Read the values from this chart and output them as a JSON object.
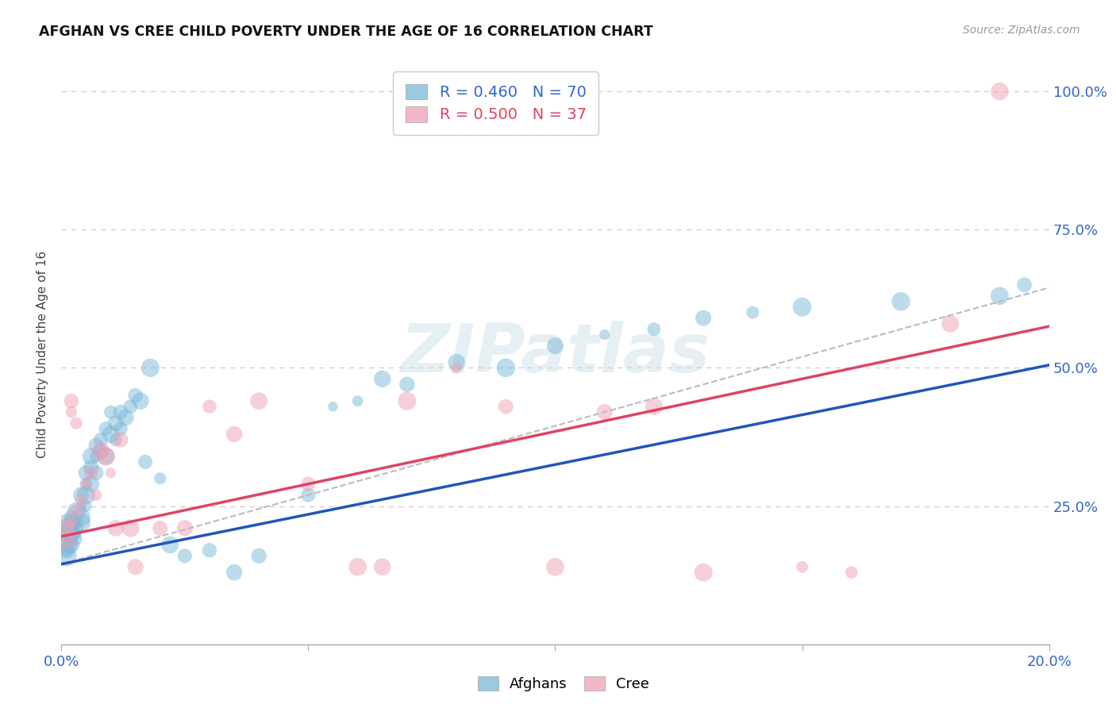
{
  "title": "AFGHAN VS CREE CHILD POVERTY UNDER THE AGE OF 16 CORRELATION CHART",
  "source": "Source: ZipAtlas.com",
  "ylabel": "Child Poverty Under the Age of 16",
  "legend_label1": "Afghans",
  "legend_label2": "Cree",
  "r1": 0.46,
  "n1": 70,
  "r2": 0.5,
  "n2": 37,
  "color_afghans": "#7ab8d8",
  "color_cree": "#f0a0b5",
  "color_line_afghans": "#2255bb",
  "color_line_cree": "#dd4466",
  "xlim": [
    0.0,
    0.2
  ],
  "ylim": [
    0.0,
    1.05
  ],
  "xtick_vals": [
    0.0,
    0.05,
    0.1,
    0.15,
    0.2
  ],
  "xtick_labels": [
    "0.0%",
    "",
    "",
    "",
    "20.0%"
  ],
  "ytick_positions": [
    0.0,
    0.25,
    0.5,
    0.75,
    1.0
  ],
  "ytick_labels": [
    "",
    "25.0%",
    "50.0%",
    "75.0%",
    "100.0%"
  ],
  "afghans_x": [
    0.001,
    0.001,
    0.001,
    0.001,
    0.001,
    0.001,
    0.001,
    0.002,
    0.002,
    0.002,
    0.002,
    0.002,
    0.002,
    0.003,
    0.003,
    0.003,
    0.003,
    0.003,
    0.004,
    0.004,
    0.004,
    0.004,
    0.005,
    0.005,
    0.005,
    0.005,
    0.006,
    0.006,
    0.006,
    0.007,
    0.007,
    0.007,
    0.008,
    0.008,
    0.009,
    0.009,
    0.01,
    0.01,
    0.011,
    0.011,
    0.012,
    0.012,
    0.013,
    0.014,
    0.015,
    0.016,
    0.017,
    0.018,
    0.02,
    0.022,
    0.025,
    0.03,
    0.035,
    0.04,
    0.05,
    0.055,
    0.06,
    0.065,
    0.07,
    0.08,
    0.09,
    0.1,
    0.11,
    0.12,
    0.13,
    0.14,
    0.15,
    0.17,
    0.19,
    0.195
  ],
  "afghans_y": [
    0.18,
    0.19,
    0.2,
    0.21,
    0.16,
    0.22,
    0.17,
    0.19,
    0.21,
    0.22,
    0.18,
    0.2,
    0.23,
    0.2,
    0.22,
    0.24,
    0.19,
    0.21,
    0.23,
    0.25,
    0.27,
    0.22,
    0.29,
    0.31,
    0.27,
    0.25,
    0.32,
    0.34,
    0.29,
    0.36,
    0.34,
    0.31,
    0.37,
    0.35,
    0.39,
    0.34,
    0.38,
    0.42,
    0.4,
    0.37,
    0.42,
    0.39,
    0.41,
    0.43,
    0.45,
    0.44,
    0.33,
    0.5,
    0.3,
    0.18,
    0.16,
    0.17,
    0.13,
    0.16,
    0.27,
    0.43,
    0.44,
    0.48,
    0.47,
    0.51,
    0.5,
    0.54,
    0.56,
    0.57,
    0.59,
    0.6,
    0.61,
    0.62,
    0.63,
    0.65
  ],
  "cree_x": [
    0.001,
    0.001,
    0.002,
    0.002,
    0.002,
    0.003,
    0.003,
    0.004,
    0.005,
    0.006,
    0.007,
    0.008,
    0.009,
    0.01,
    0.011,
    0.012,
    0.014,
    0.015,
    0.02,
    0.025,
    0.03,
    0.035,
    0.04,
    0.05,
    0.06,
    0.065,
    0.07,
    0.08,
    0.09,
    0.1,
    0.11,
    0.12,
    0.13,
    0.15,
    0.16,
    0.18,
    0.19
  ],
  "cree_y": [
    0.19,
    0.21,
    0.44,
    0.42,
    0.22,
    0.4,
    0.24,
    0.26,
    0.29,
    0.31,
    0.27,
    0.35,
    0.34,
    0.31,
    0.21,
    0.37,
    0.21,
    0.14,
    0.21,
    0.21,
    0.43,
    0.38,
    0.44,
    0.29,
    0.14,
    0.14,
    0.44,
    0.5,
    0.43,
    0.14,
    0.42,
    0.43,
    0.13,
    0.14,
    0.13,
    0.58,
    1.0
  ],
  "afghans_line_y0": 0.145,
  "afghans_line_y1": 0.505,
  "cree_line_y0": 0.195,
  "cree_line_y1": 0.575,
  "dashed_line_y0": 0.145,
  "dashed_line_y1": 0.645,
  "watermark": "ZIPatlas",
  "background_color": "#ffffff",
  "grid_color": "#cccccc"
}
